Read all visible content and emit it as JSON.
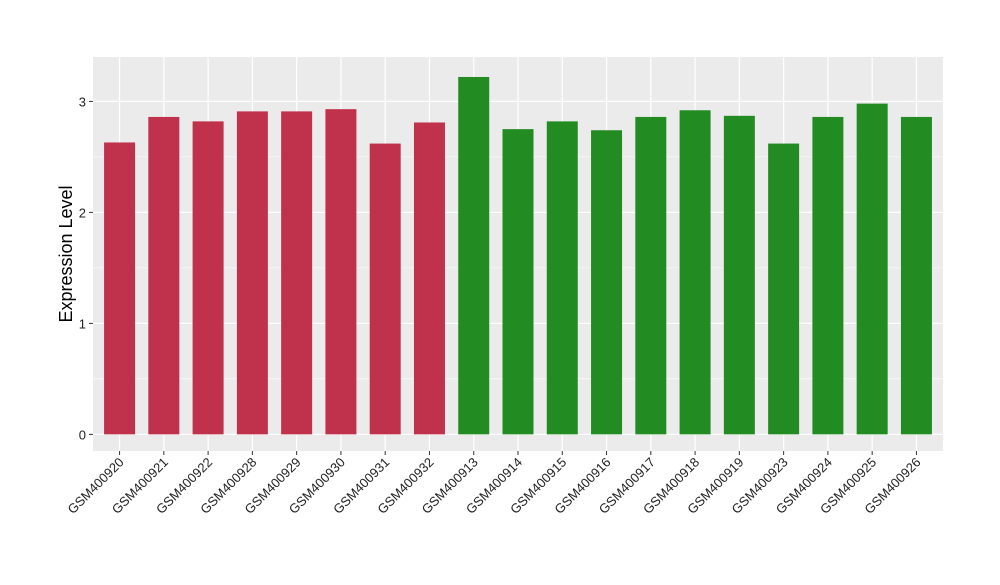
{
  "chart_data": {
    "type": "bar",
    "title": "",
    "xlabel": "",
    "ylabel": "Expression Level",
    "ylim": [
      -0.15,
      3.4
    ],
    "yticks": [
      0,
      1,
      2,
      3
    ],
    "grid": true,
    "categories": [
      "GSM400920",
      "GSM400921",
      "GSM400922",
      "GSM400928",
      "GSM400929",
      "GSM400930",
      "GSM400931",
      "GSM400932",
      "GSM400913",
      "GSM400914",
      "GSM400915",
      "GSM400916",
      "GSM400917",
      "GSM400918",
      "GSM400919",
      "GSM400923",
      "GSM400924",
      "GSM400925",
      "GSM400926"
    ],
    "values": [
      2.63,
      2.86,
      2.82,
      2.91,
      2.91,
      2.93,
      2.62,
      2.81,
      3.22,
      2.75,
      2.82,
      2.74,
      2.86,
      2.92,
      2.87,
      2.62,
      2.86,
      2.98,
      2.86
    ],
    "bar_colors": [
      "#C0314B",
      "#C0314B",
      "#C0314B",
      "#C0314B",
      "#C0314B",
      "#C0314B",
      "#C0314B",
      "#C0314B",
      "#228B22",
      "#228B22",
      "#228B22",
      "#228B22",
      "#228B22",
      "#228B22",
      "#228B22",
      "#228B22",
      "#228B22",
      "#228B22",
      "#228B22"
    ],
    "panel_background": "#EBEBEB",
    "grid_color": "#FFFFFF"
  }
}
